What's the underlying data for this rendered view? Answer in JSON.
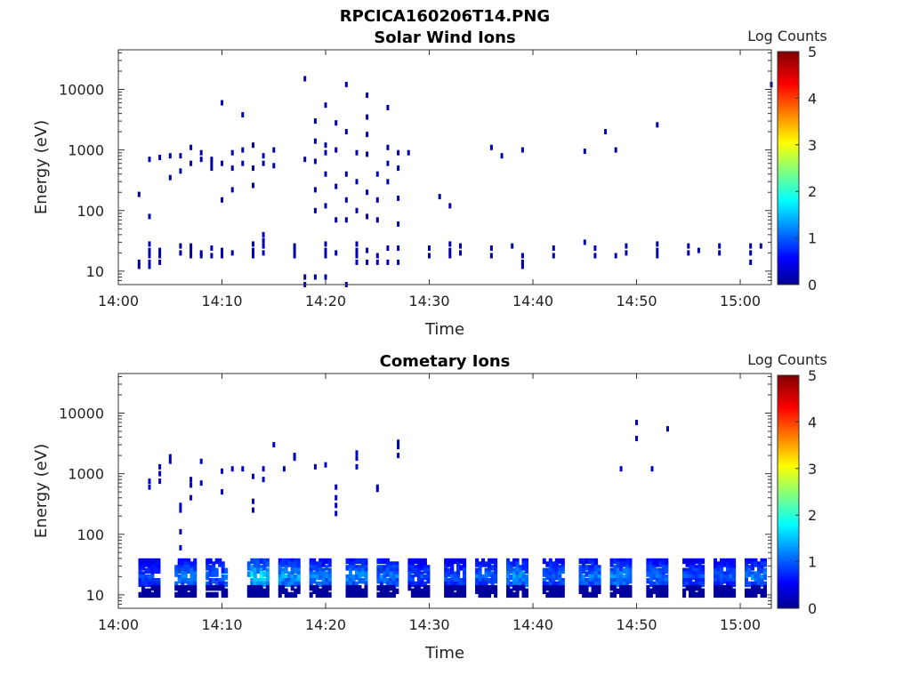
{
  "figure_title": "RPCICA160206T14.PNG",
  "chart_data": [
    {
      "type": "heatmap",
      "title": "Solar Wind Ions",
      "xlabel": "Time",
      "ylabel": "Energy (eV)",
      "y_scale": "log",
      "ylim": [
        6,
        45000
      ],
      "xlim": [
        "14:00",
        "15:03"
      ],
      "x_ticks": [
        "14:00",
        "14:10",
        "14:20",
        "14:30",
        "14:40",
        "14:50",
        "15:00"
      ],
      "y_ticks": [
        "10",
        "100",
        "1000",
        "10000"
      ],
      "colorbar": {
        "label": "Log Counts",
        "min": 0,
        "max": 5,
        "ticks": [
          "0",
          "1",
          "2",
          "3",
          "4",
          "5"
        ],
        "colormap": "jet"
      },
      "points": [
        [
          "14:02",
          185,
          0.1
        ],
        [
          "14:02",
          14,
          0.1
        ],
        [
          "14:02",
          12,
          0.1
        ],
        [
          "14:03",
          700,
          0.2
        ],
        [
          "14:03",
          80,
          0.2
        ],
        [
          "14:03",
          28,
          0.2
        ],
        [
          "14:03",
          22,
          0.2
        ],
        [
          "14:03",
          18,
          0.2
        ],
        [
          "14:03",
          14,
          0.2
        ],
        [
          "14:03",
          12,
          0.2
        ],
        [
          "14:04",
          750,
          0.2
        ],
        [
          "14:04",
          22,
          0.2
        ],
        [
          "14:04",
          18,
          0.2
        ],
        [
          "14:04",
          14,
          0.2
        ],
        [
          "14:05",
          800,
          0.2
        ],
        [
          "14:05",
          350,
          0.2
        ],
        [
          "14:06",
          800,
          0.2
        ],
        [
          "14:06",
          450,
          0.2
        ],
        [
          "14:06",
          26,
          0.2
        ],
        [
          "14:06",
          20,
          0.2
        ],
        [
          "14:07",
          1100,
          0.2
        ],
        [
          "14:07",
          600,
          0.2
        ],
        [
          "14:07",
          26,
          0.2
        ],
        [
          "14:07",
          22,
          0.2
        ],
        [
          "14:07",
          18,
          0.2
        ],
        [
          "14:08",
          900,
          0.2
        ],
        [
          "14:08",
          700,
          0.2
        ],
        [
          "14:08",
          20,
          0.2
        ],
        [
          "14:08",
          18,
          0.2
        ],
        [
          "14:09",
          700,
          0.2
        ],
        [
          "14:09",
          600,
          0.2
        ],
        [
          "14:09",
          500,
          0.2
        ],
        [
          "14:09",
          24,
          0.2
        ],
        [
          "14:09",
          18,
          0.2
        ],
        [
          "14:10",
          600,
          0.2
        ],
        [
          "14:10",
          150,
          0.2
        ],
        [
          "14:10",
          6000,
          0.2
        ],
        [
          "14:10",
          22,
          0.2
        ],
        [
          "14:10",
          18,
          0.2
        ],
        [
          "14:11",
          500,
          0.2
        ],
        [
          "14:11",
          220,
          0.2
        ],
        [
          "14:11",
          900,
          0.2
        ],
        [
          "14:11",
          20,
          0.2
        ],
        [
          "14:12",
          1000,
          0.2
        ],
        [
          "14:12",
          3800,
          0.2
        ],
        [
          "14:12",
          600,
          0.2
        ],
        [
          "14:13",
          1200,
          0.2
        ],
        [
          "14:13",
          500,
          0.2
        ],
        [
          "14:13",
          260,
          0.2
        ],
        [
          "14:13",
          28,
          0.3
        ],
        [
          "14:13",
          22,
          0.3
        ],
        [
          "14:13",
          18,
          0.3
        ],
        [
          "14:14",
          800,
          0.2
        ],
        [
          "14:14",
          600,
          0.2
        ],
        [
          "14:14",
          40,
          0.3
        ],
        [
          "14:14",
          32,
          0.3
        ],
        [
          "14:14",
          26,
          0.3
        ],
        [
          "14:14",
          20,
          0.3
        ],
        [
          "14:15",
          1000,
          0.2
        ],
        [
          "14:15",
          550,
          0.2
        ],
        [
          "14:17",
          26,
          0.2
        ],
        [
          "14:17",
          22,
          0.2
        ],
        [
          "14:17",
          18,
          0.2
        ],
        [
          "14:18",
          15000,
          0.2
        ],
        [
          "14:18",
          700,
          0.2
        ],
        [
          "14:18",
          8,
          0.2
        ],
        [
          "14:18",
          6,
          0.2
        ],
        [
          "14:19",
          3000,
          0.2
        ],
        [
          "14:19",
          1400,
          0.2
        ],
        [
          "14:19",
          650,
          0.2
        ],
        [
          "14:19",
          220,
          0.2
        ],
        [
          "14:19",
          100,
          0.2
        ],
        [
          "14:19",
          8,
          0.2
        ],
        [
          "14:20",
          5500,
          0.2
        ],
        [
          "14:20",
          1200,
          0.2
        ],
        [
          "14:20",
          900,
          0.2
        ],
        [
          "14:20",
          400,
          0.2
        ],
        [
          "14:20",
          120,
          0.2
        ],
        [
          "14:20",
          28,
          0.2
        ],
        [
          "14:20",
          22,
          0.2
        ],
        [
          "14:20",
          18,
          0.2
        ],
        [
          "14:20",
          8,
          0.2
        ],
        [
          "14:21",
          2800,
          0.2
        ],
        [
          "14:21",
          1000,
          0.2
        ],
        [
          "14:21",
          250,
          0.2
        ],
        [
          "14:21",
          70,
          0.2
        ],
        [
          "14:21",
          20,
          0.2
        ],
        [
          "14:22",
          12000,
          0.2
        ],
        [
          "14:22",
          2000,
          0.2
        ],
        [
          "14:22",
          400,
          0.2
        ],
        [
          "14:22",
          150,
          0.2
        ],
        [
          "14:22",
          70,
          0.2
        ],
        [
          "14:22",
          6,
          0.2
        ],
        [
          "14:23",
          300,
          0.2
        ],
        [
          "14:23",
          900,
          0.2
        ],
        [
          "14:23",
          100,
          0.2
        ],
        [
          "14:23",
          28,
          0.2
        ],
        [
          "14:23",
          22,
          0.2
        ],
        [
          "14:23",
          18,
          0.2
        ],
        [
          "14:23",
          14,
          0.2
        ],
        [
          "14:24",
          8000,
          0.2
        ],
        [
          "14:24",
          3500,
          0.2
        ],
        [
          "14:24",
          1800,
          0.2
        ],
        [
          "14:24",
          850,
          0.2
        ],
        [
          "14:24",
          200,
          0.2
        ],
        [
          "14:24",
          80,
          0.2
        ],
        [
          "14:24",
          22,
          0.2
        ],
        [
          "14:24",
          14,
          0.2
        ],
        [
          "14:25",
          400,
          0.2
        ],
        [
          "14:25",
          150,
          0.2
        ],
        [
          "14:25",
          70,
          0.2
        ],
        [
          "14:25",
          18,
          0.2
        ],
        [
          "14:25",
          14,
          0.2
        ],
        [
          "14:26",
          5000,
          0.2
        ],
        [
          "14:26",
          1100,
          0.2
        ],
        [
          "14:26",
          600,
          0.2
        ],
        [
          "14:26",
          300,
          0.2
        ],
        [
          "14:26",
          24,
          0.2
        ],
        [
          "14:26",
          14,
          0.2
        ],
        [
          "14:27",
          900,
          0.2
        ],
        [
          "14:27",
          500,
          0.2
        ],
        [
          "14:27",
          160,
          0.2
        ],
        [
          "14:27",
          60,
          0.2
        ],
        [
          "14:27",
          24,
          0.2
        ],
        [
          "14:27",
          14,
          0.2
        ],
        [
          "14:28",
          900,
          0.2
        ],
        [
          "14:30",
          24,
          0.2
        ],
        [
          "14:30",
          18,
          0.2
        ],
        [
          "14:31",
          170,
          0.2
        ],
        [
          "14:32",
          120,
          0.2
        ],
        [
          "14:32",
          28,
          0.2
        ],
        [
          "14:32",
          22,
          0.2
        ],
        [
          "14:32",
          18,
          0.2
        ],
        [
          "14:33",
          26,
          0.2
        ],
        [
          "14:33",
          20,
          0.2
        ],
        [
          "14:36",
          1100,
          0.2
        ],
        [
          "14:36",
          24,
          0.2
        ],
        [
          "14:36",
          18,
          0.2
        ],
        [
          "14:37",
          800,
          0.2
        ],
        [
          "14:38",
          26,
          0.2
        ],
        [
          "14:39",
          1000,
          0.2
        ],
        [
          "14:39",
          18,
          0.2
        ],
        [
          "14:39",
          14,
          0.2
        ],
        [
          "14:39",
          12,
          0.2
        ],
        [
          "14:42",
          24,
          0.2
        ],
        [
          "14:42",
          18,
          0.2
        ],
        [
          "14:45",
          950,
          0.2
        ],
        [
          "14:45",
          30,
          0.2
        ],
        [
          "14:46",
          24,
          0.2
        ],
        [
          "14:46",
          18,
          0.2
        ],
        [
          "14:47",
          2000,
          0.2
        ],
        [
          "14:48",
          1000,
          0.2
        ],
        [
          "14:48",
          18,
          0.2
        ],
        [
          "14:49",
          26,
          0.2
        ],
        [
          "14:49",
          20,
          0.2
        ],
        [
          "14:52",
          2600,
          0.2
        ],
        [
          "14:52",
          28,
          0.2
        ],
        [
          "14:52",
          22,
          0.2
        ],
        [
          "14:52",
          18,
          0.2
        ],
        [
          "14:55",
          26,
          0.2
        ],
        [
          "14:55",
          20,
          0.2
        ],
        [
          "14:56",
          22,
          0.2
        ],
        [
          "14:58",
          26,
          0.2
        ],
        [
          "14:58",
          20,
          0.2
        ],
        [
          "15:01",
          26,
          0.2
        ],
        [
          "15:01",
          20,
          0.2
        ],
        [
          "15:01",
          14,
          0.2
        ],
        [
          "15:02",
          26,
          0.2
        ],
        [
          "15:03",
          12000,
          0.2
        ]
      ]
    },
    {
      "type": "heatmap",
      "title": "Cometary Ions",
      "xlabel": "Time",
      "ylabel": "Energy (eV)",
      "y_scale": "log",
      "ylim": [
        6,
        45000
      ],
      "xlim": [
        "14:00",
        "15:03"
      ],
      "x_ticks": [
        "14:00",
        "14:10",
        "14:20",
        "14:30",
        "14:40",
        "14:50",
        "15:00"
      ],
      "y_ticks": [
        "10",
        "100",
        "1000",
        "10000"
      ],
      "colorbar": {
        "label": "Log Counts",
        "min": 0,
        "max": 5,
        "ticks": [
          "0",
          "1",
          "2",
          "3",
          "4",
          "5"
        ],
        "colormap": "jet"
      },
      "bursts": [
        {
          "t": "14:03",
          "peak": 1.0
        },
        {
          "t": "14:06.5",
          "peak": 1.3
        },
        {
          "t": "14:09.5",
          "peak": 1.2
        },
        {
          "t": "14:13.5",
          "peak": 1.8
        },
        {
          "t": "14:16.5",
          "peak": 1.5
        },
        {
          "t": "14:19.5",
          "peak": 1.3
        },
        {
          "t": "14:23",
          "peak": 1.4
        },
        {
          "t": "14:26",
          "peak": 1.3
        },
        {
          "t": "14:29",
          "peak": 1.1
        },
        {
          "t": "14:32.5",
          "peak": 1.1
        },
        {
          "t": "14:35.5",
          "peak": 1.2
        },
        {
          "t": "14:38.5",
          "peak": 1.4
        },
        {
          "t": "14:42",
          "peak": 1.2
        },
        {
          "t": "14:45.5",
          "peak": 1.3
        },
        {
          "t": "14:48.5",
          "peak": 1.4
        },
        {
          "t": "14:52",
          "peak": 1.3
        },
        {
          "t": "14:55.5",
          "peak": 1.1
        },
        {
          "t": "14:58.5",
          "peak": 1.1
        },
        {
          "t": "15:01.5",
          "peak": 1.3
        }
      ],
      "points": [
        [
          "14:03",
          750,
          0.4
        ],
        [
          "14:03",
          600,
          0.3
        ],
        [
          "14:04",
          1000,
          0.3
        ],
        [
          "14:04",
          1300,
          0.3
        ],
        [
          "14:04",
          750,
          0.3
        ],
        [
          "14:05",
          1600,
          0.3
        ],
        [
          "14:05",
          1900,
          0.3
        ],
        [
          "14:06",
          250,
          0.4
        ],
        [
          "14:06",
          300,
          0.4
        ],
        [
          "14:06",
          110,
          0.3
        ],
        [
          "14:06",
          60,
          0.4
        ],
        [
          "14:07",
          650,
          0.3
        ],
        [
          "14:07",
          400,
          0.3
        ],
        [
          "14:07",
          800,
          0.3
        ],
        [
          "14:08",
          1600,
          0.3
        ],
        [
          "14:08",
          700,
          0.3
        ],
        [
          "14:10",
          500,
          0.3
        ],
        [
          "14:10",
          1100,
          0.3
        ],
        [
          "14:11",
          1200,
          0.3
        ],
        [
          "14:12",
          1200,
          0.3
        ],
        [
          "14:13",
          250,
          0.3
        ],
        [
          "14:13",
          350,
          0.3
        ],
        [
          "14:13",
          900,
          0.3
        ],
        [
          "14:14",
          800,
          0.3
        ],
        [
          "14:14",
          1200,
          0.3
        ],
        [
          "14:15",
          3000,
          0.3
        ],
        [
          "14:16",
          1200,
          0.3
        ],
        [
          "14:17",
          1800,
          0.3
        ],
        [
          "14:17",
          2000,
          0.3
        ],
        [
          "14:19",
          1300,
          0.3
        ],
        [
          "14:20",
          1400,
          0.3
        ],
        [
          "14:21",
          600,
          0.3
        ],
        [
          "14:21",
          300,
          0.3
        ],
        [
          "14:21",
          220,
          0.3
        ],
        [
          "14:21",
          400,
          0.3
        ],
        [
          "14:23",
          1300,
          0.3
        ],
        [
          "14:23",
          1800,
          0.3
        ],
        [
          "14:23",
          2200,
          0.3
        ],
        [
          "14:25",
          550,
          0.3
        ],
        [
          "14:25",
          600,
          0.3
        ],
        [
          "14:27",
          2000,
          0.3
        ],
        [
          "14:27",
          2800,
          0.3
        ],
        [
          "14:27",
          3300,
          0.3
        ],
        [
          "14:48.5",
          1200,
          0.3
        ],
        [
          "14:50",
          3800,
          0.3
        ],
        [
          "14:50",
          7000,
          0.3
        ],
        [
          "14:51.5",
          1200,
          0.3
        ],
        [
          "14:53",
          5500,
          0.3
        ]
      ]
    }
  ]
}
